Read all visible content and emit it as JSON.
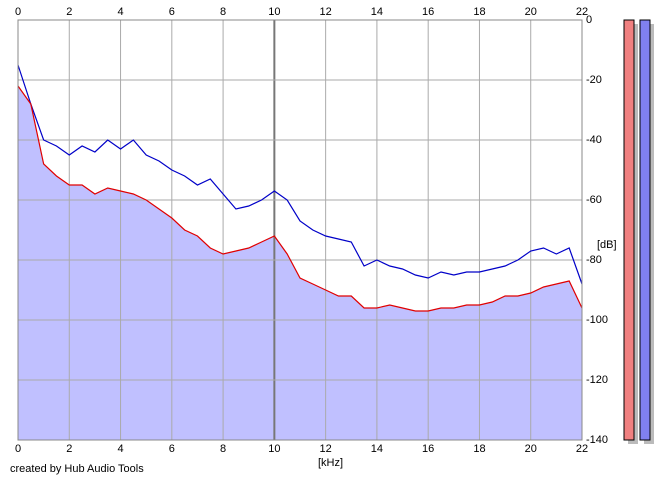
{
  "chart_data": {
    "type": "line",
    "x_label": "[kHz]",
    "y_label": "[dB]",
    "footer": "created by Hub Audio Tools",
    "x": [
      0,
      0.5,
      1,
      1.5,
      2,
      2.5,
      3,
      3.5,
      4,
      4.5,
      5,
      5.5,
      6,
      6.5,
      7,
      7.5,
      8,
      8.5,
      9,
      9.5,
      10,
      10.5,
      11,
      11.5,
      12,
      12.5,
      13,
      13.5,
      14,
      14.5,
      15,
      15.5,
      16,
      16.5,
      17,
      17.5,
      18,
      18.5,
      19,
      19.5,
      20,
      20.5,
      21,
      21.5,
      22
    ],
    "series": [
      {
        "color": "#0000c8",
        "values": [
          -15,
          -28,
          -40,
          -42,
          -45,
          -42,
          -44,
          -40,
          -43,
          -40,
          -45,
          -47,
          -50,
          -52,
          -55,
          -53,
          -58,
          -63,
          -62,
          -60,
          -57,
          -60,
          -67,
          -70,
          -72,
          -73,
          -74,
          -82,
          -80,
          -82,
          -83,
          -85,
          -86,
          -84,
          -85,
          -84,
          -84,
          -83,
          -82,
          -80,
          -77,
          -76,
          -78,
          -76,
          -88
        ]
      },
      {
        "color": "#e00000",
        "values": [
          -22,
          -28,
          -48,
          -52,
          -55,
          -55,
          -58,
          -56,
          -57,
          -58,
          -60,
          -63,
          -66,
          -70,
          -72,
          -76,
          -78,
          -77,
          -76,
          -74,
          -72,
          -78,
          -86,
          -88,
          -90,
          -92,
          -92,
          -96,
          -96,
          -95,
          -96,
          -97,
          -97,
          -96,
          -96,
          -95,
          -95,
          -94,
          -92,
          -92,
          -91,
          -89,
          -88,
          -87,
          -96
        ]
      }
    ],
    "area_color": "#c0c0ff",
    "xlim": [
      0,
      22
    ],
    "xticks": [
      0,
      2,
      4,
      6,
      8,
      10,
      12,
      14,
      16,
      18,
      20,
      22
    ],
    "ylim": [
      -140,
      0
    ],
    "yticks": [
      0,
      -20,
      -40,
      -60,
      -80,
      -100,
      -120,
      -140
    ],
    "grid": true
  }
}
